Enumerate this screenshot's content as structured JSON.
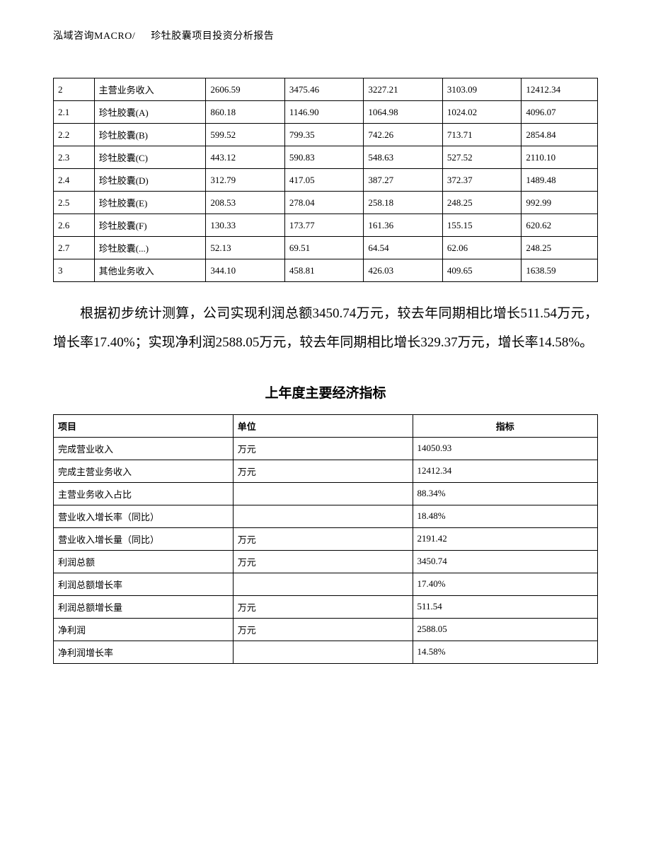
{
  "header": {
    "company": "泓域咨询MACRO/",
    "title": "珍牡胶囊项目投资分析报告"
  },
  "table1": {
    "rows": [
      [
        "2",
        "主营业务收入",
        "2606.59",
        "3475.46",
        "3227.21",
        "3103.09",
        "12412.34"
      ],
      [
        "2.1",
        "珍牡胶囊(A)",
        "860.18",
        "1146.90",
        "1064.98",
        "1024.02",
        "4096.07"
      ],
      [
        "2.2",
        "珍牡胶囊(B)",
        "599.52",
        "799.35",
        "742.26",
        "713.71",
        "2854.84"
      ],
      [
        "2.3",
        "珍牡胶囊(C)",
        "443.12",
        "590.83",
        "548.63",
        "527.52",
        "2110.10"
      ],
      [
        "2.4",
        "珍牡胶囊(D)",
        "312.79",
        "417.05",
        "387.27",
        "372.37",
        "1489.48"
      ],
      [
        "2.5",
        "珍牡胶囊(E)",
        "208.53",
        "278.04",
        "258.18",
        "248.25",
        "992.99"
      ],
      [
        "2.6",
        "珍牡胶囊(F)",
        "130.33",
        "173.77",
        "161.36",
        "155.15",
        "620.62"
      ],
      [
        "2.7",
        "珍牡胶囊(...)",
        "52.13",
        "69.51",
        "64.54",
        "62.06",
        "248.25"
      ],
      [
        "3",
        "其他业务收入",
        "344.10",
        "458.81",
        "426.03",
        "409.65",
        "1638.59"
      ]
    ]
  },
  "paragraph": "根据初步统计测算，公司实现利润总额3450.74万元，较去年同期相比增长511.54万元，增长率17.40%；实现净利润2588.05万元，较去年同期相比增长329.37万元，增长率14.58%。",
  "section_title": "上年度主要经济指标",
  "table2": {
    "headers": [
      "项目",
      "单位",
      "指标"
    ],
    "rows": [
      [
        "完成营业收入",
        "万元",
        "14050.93"
      ],
      [
        "完成主营业务收入",
        "万元",
        "12412.34"
      ],
      [
        "主营业务收入占比",
        "",
        "88.34%"
      ],
      [
        "营业收入增长率（同比）",
        "",
        "18.48%"
      ],
      [
        "营业收入增长量（同比）",
        "万元",
        "2191.42"
      ],
      [
        "利润总额",
        "万元",
        "3450.74"
      ],
      [
        "利润总额增长率",
        "",
        "17.40%"
      ],
      [
        "利润总额增长量",
        "万元",
        "511.54"
      ],
      [
        "净利润",
        "万元",
        "2588.05"
      ],
      [
        "净利润增长率",
        "",
        "14.58%"
      ]
    ]
  }
}
